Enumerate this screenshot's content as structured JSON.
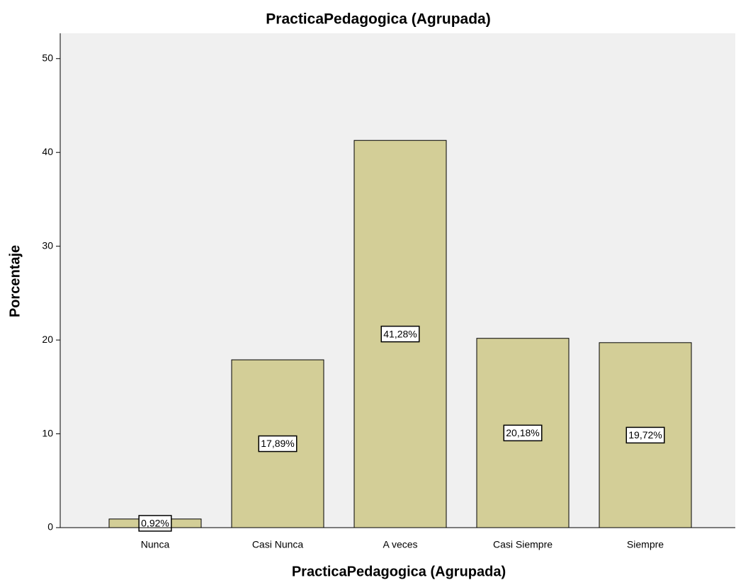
{
  "chart_data": {
    "type": "bar",
    "title": "PracticaPedagogica (Agrupada)",
    "x_label": "PracticaPedagogica (Agrupada)",
    "y_label": "Porcentaje",
    "categories": [
      "Nunca",
      "Casi Nunca",
      "A veces",
      "Casi Siempre",
      "Siempre"
    ],
    "values": [
      0.92,
      17.89,
      41.28,
      20.18,
      19.72
    ],
    "value_labels": [
      "0,92%",
      "17,89%",
      "41,28%",
      "20,18%",
      "19,72%"
    ],
    "color": "#d3ce97",
    "ylim": [
      0,
      52.7
    ],
    "yticks": [
      0,
      10,
      20,
      30,
      40,
      50
    ],
    "grid": false
  }
}
